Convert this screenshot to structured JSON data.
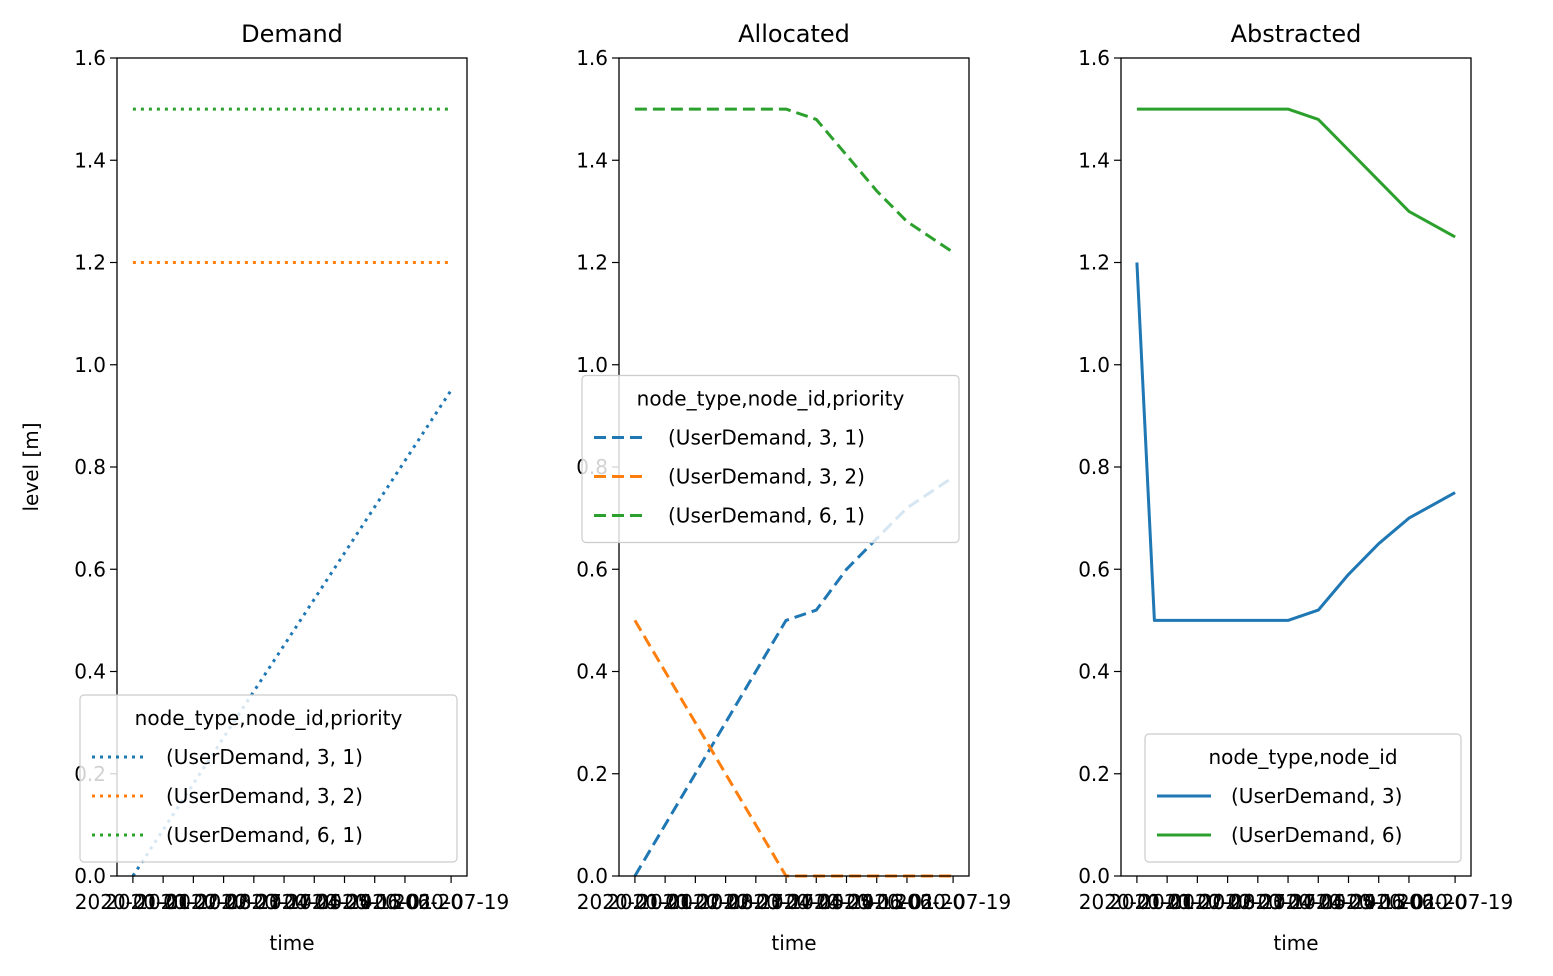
{
  "figure": {
    "ylabel": "level [m]"
  },
  "chart_data": [
    {
      "type": "line",
      "title": "Demand",
      "xlabel": "time",
      "ylabel": "level [m]",
      "ylim": [
        0,
        1.6
      ],
      "yticks": [
        "0.0",
        "0.2",
        "0.4",
        "0.6",
        "0.8",
        "1.0",
        "1.2",
        "1.4",
        "1.6"
      ],
      "xtick_labels": [
        "2020-01-01",
        "2020-01-20",
        "2020-02-08",
        "2020-02-27",
        "2020-03-17",
        "2020-04-05",
        "2020-04-24",
        "2020-05-13",
        "2020-06-01",
        "2020-06-20",
        "2020-07-19"
      ],
      "line_style": "dotted",
      "legend": {
        "title": "node_type,node_id,priority",
        "location": "lower-right"
      },
      "series": [
        {
          "name": "(UserDemand, 3, 1)",
          "color": "#1f77b4",
          "x": [
            "2020-01-01",
            "2020-07-19"
          ],
          "y": [
            0.0,
            0.95
          ]
        },
        {
          "name": "(UserDemand, 3, 2)",
          "color": "#ff7f0e",
          "x": [
            "2020-01-01",
            "2020-07-19"
          ],
          "y": [
            1.2,
            1.2
          ]
        },
        {
          "name": "(UserDemand, 6, 1)",
          "color": "#2ca02c",
          "x": [
            "2020-01-01",
            "2020-07-19"
          ],
          "y": [
            1.5,
            1.5
          ]
        }
      ]
    },
    {
      "type": "line",
      "title": "Allocated",
      "xlabel": "time",
      "ylim": [
        0,
        1.6
      ],
      "yticks": [
        "0.0",
        "0.2",
        "0.4",
        "0.6",
        "0.8",
        "1.0",
        "1.2",
        "1.4",
        "1.6"
      ],
      "xtick_labels": [
        "2020-01-01",
        "2020-01-20",
        "2020-02-08",
        "2020-02-27",
        "2020-03-17",
        "2020-04-05",
        "2020-04-24",
        "2020-05-13",
        "2020-06-01",
        "2020-06-20",
        "2020-07-19"
      ],
      "line_style": "dashed",
      "legend": {
        "title": "node_type,node_id,priority",
        "location": "center-right"
      },
      "series": [
        {
          "name": "(UserDemand, 3, 1)",
          "color": "#1f77b4",
          "x": [
            "2020-01-01",
            "2020-04-05",
            "2020-04-24",
            "2020-05-13",
            "2020-06-01",
            "2020-06-20",
            "2020-07-19"
          ],
          "y": [
            0.0,
            0.5,
            0.52,
            0.6,
            0.66,
            0.72,
            0.78
          ]
        },
        {
          "name": "(UserDemand, 3, 2)",
          "color": "#ff7f0e",
          "x": [
            "2020-01-01",
            "2020-04-05",
            "2020-04-24",
            "2020-07-19"
          ],
          "y": [
            0.5,
            0.0,
            0.0,
            0.0
          ]
        },
        {
          "name": "(UserDemand, 6, 1)",
          "color": "#2ca02c",
          "x": [
            "2020-01-01",
            "2020-04-05",
            "2020-04-24",
            "2020-05-13",
            "2020-06-01",
            "2020-06-20",
            "2020-07-19"
          ],
          "y": [
            1.5,
            1.5,
            1.48,
            1.41,
            1.34,
            1.28,
            1.22
          ]
        }
      ]
    },
    {
      "type": "line",
      "title": "Abstracted",
      "xlabel": "time",
      "ylim": [
        0,
        1.6
      ],
      "yticks": [
        "0.0",
        "0.2",
        "0.4",
        "0.6",
        "0.8",
        "1.0",
        "1.2",
        "1.4",
        "1.6"
      ],
      "xtick_labels": [
        "2020-01-01",
        "2020-01-20",
        "2020-02-08",
        "2020-02-27",
        "2020-03-17",
        "2020-04-05",
        "2020-04-24",
        "2020-05-13",
        "2020-06-01",
        "2020-06-20",
        "2020-07-19"
      ],
      "line_style": "solid",
      "legend": {
        "title": "node_type,node_id",
        "location": "lower-right"
      },
      "series": [
        {
          "name": "(UserDemand, 3)",
          "color": "#1f77b4",
          "x": [
            "2020-01-01",
            "2020-01-12",
            "2020-04-05",
            "2020-04-24",
            "2020-05-13",
            "2020-06-01",
            "2020-06-20",
            "2020-07-19"
          ],
          "y": [
            1.2,
            0.5,
            0.5,
            0.52,
            0.59,
            0.65,
            0.7,
            0.75
          ]
        },
        {
          "name": "(UserDemand, 6)",
          "color": "#2ca02c",
          "x": [
            "2020-01-01",
            "2020-04-05",
            "2020-04-24",
            "2020-05-13",
            "2020-06-01",
            "2020-06-20",
            "2020-07-19"
          ],
          "y": [
            1.5,
            1.5,
            1.48,
            1.42,
            1.36,
            1.3,
            1.25
          ]
        }
      ]
    }
  ]
}
